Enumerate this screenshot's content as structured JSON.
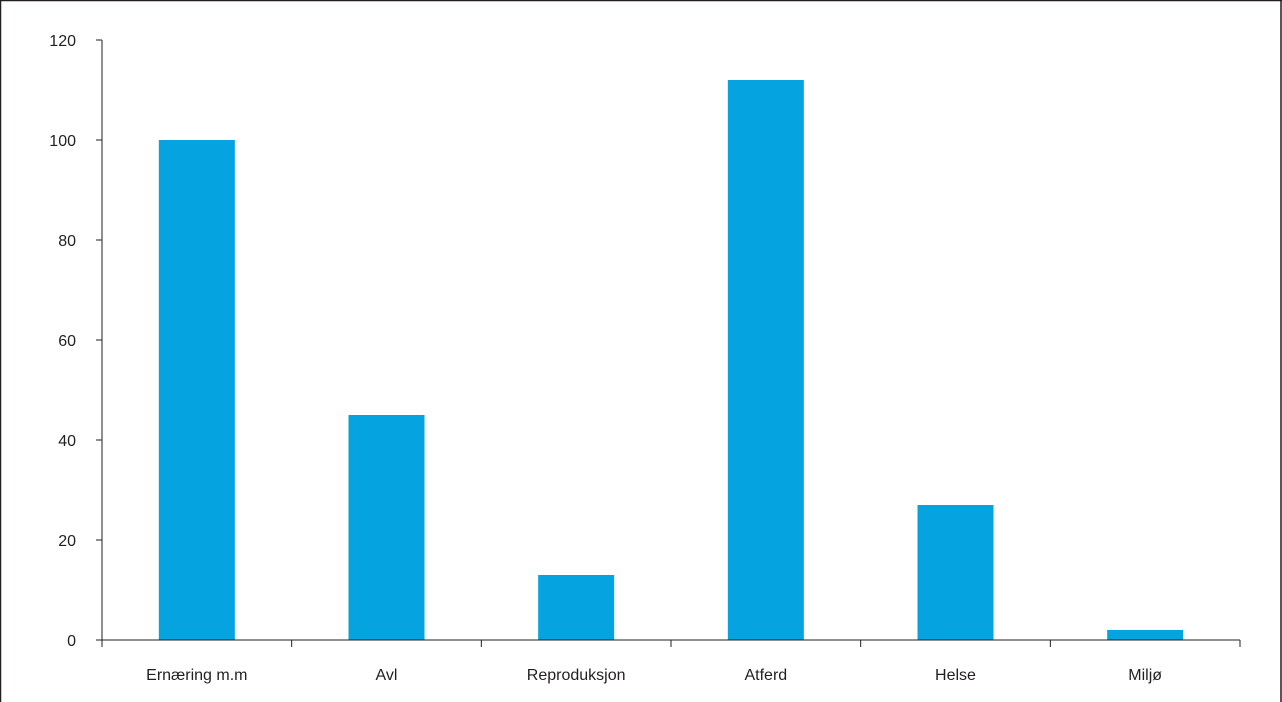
{
  "chart_data": {
    "type": "bar",
    "title": "",
    "xlabel": "",
    "ylabel": "",
    "categories": [
      "Ernæring m.m",
      "Avl",
      "Reproduksjon",
      "Atferd",
      "Helse",
      "Miljø"
    ],
    "values": [
      100,
      45,
      13,
      112,
      27,
      2
    ],
    "ylim": [
      0,
      120
    ],
    "yticks": [
      0,
      20,
      40,
      60,
      80,
      100,
      120
    ],
    "ytick_labels": [
      "0",
      "20",
      "40",
      "60",
      "80",
      "100",
      "120"
    ],
    "grid": false,
    "legend": "none",
    "bar_color": "#05a3df",
    "axis_color": "#231f20"
  }
}
